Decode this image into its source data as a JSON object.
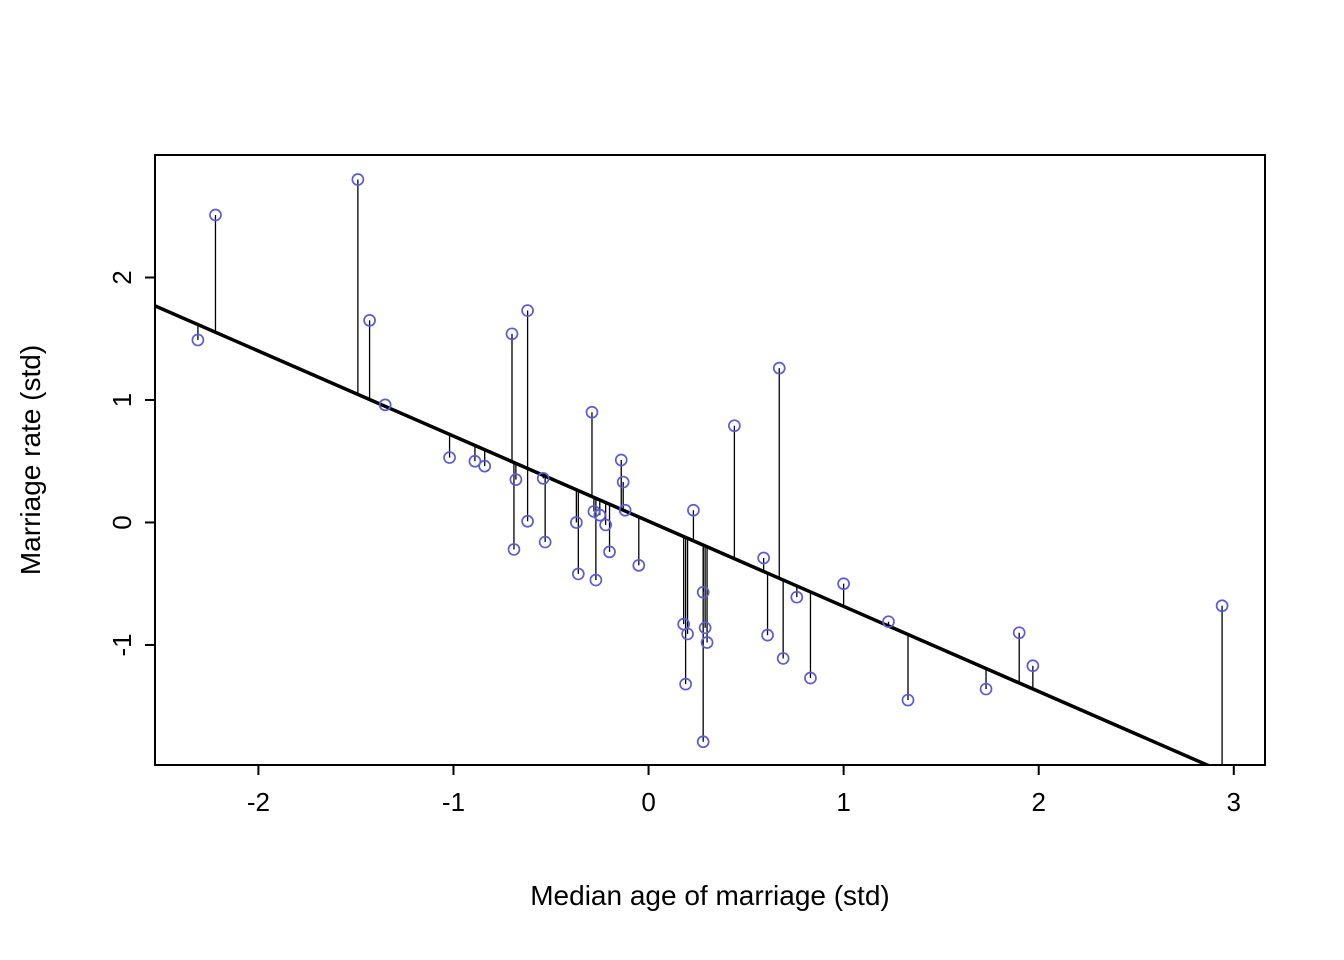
{
  "chart_data": {
    "type": "scatter",
    "title": "",
    "xlabel": "Median age of marriage (std)",
    "ylabel": "Marriage rate (std)",
    "xlim": [
      -2.53,
      3.16
    ],
    "ylim": [
      -1.98,
      3.0
    ],
    "x_ticks": [
      -2,
      -1,
      0,
      1,
      2,
      3
    ],
    "y_ticks": [
      -1,
      0,
      1,
      2
    ],
    "grid": false,
    "legend": false,
    "point_color": "#5b5bd8",
    "line_color": "#000000",
    "regression_line": {
      "intercept": 0.01,
      "slope": -0.695
    },
    "residual_segments": true,
    "points": [
      [
        -2.31,
        1.49
      ],
      [
        -2.22,
        2.51
      ],
      [
        -1.49,
        2.8
      ],
      [
        -1.43,
        1.65
      ],
      [
        -1.35,
        0.96
      ],
      [
        -1.02,
        0.53
      ],
      [
        -0.89,
        0.5
      ],
      [
        -0.84,
        0.46
      ],
      [
        -0.7,
        1.54
      ],
      [
        -0.68,
        0.35
      ],
      [
        -0.69,
        -0.22
      ],
      [
        -0.62,
        1.73
      ],
      [
        -0.62,
        0.01
      ],
      [
        -0.54,
        0.36
      ],
      [
        -0.53,
        -0.16
      ],
      [
        -0.37,
        0.0
      ],
      [
        -0.36,
        -0.42
      ],
      [
        -0.29,
        0.9
      ],
      [
        -0.28,
        0.09
      ],
      [
        -0.27,
        -0.47
      ],
      [
        -0.25,
        0.06
      ],
      [
        -0.22,
        -0.02
      ],
      [
        -0.2,
        -0.24
      ],
      [
        -0.14,
        0.51
      ],
      [
        -0.13,
        0.33
      ],
      [
        -0.12,
        0.1
      ],
      [
        -0.05,
        -0.35
      ],
      [
        0.18,
        -0.83
      ],
      [
        0.2,
        -0.91
      ],
      [
        0.19,
        -1.32
      ],
      [
        0.23,
        0.1
      ],
      [
        0.28,
        -0.57
      ],
      [
        0.29,
        -0.86
      ],
      [
        0.3,
        -0.98
      ],
      [
        0.28,
        -1.79
      ],
      [
        0.44,
        0.79
      ],
      [
        0.59,
        -0.29
      ],
      [
        0.61,
        -0.92
      ],
      [
        0.67,
        1.26
      ],
      [
        0.69,
        -1.11
      ],
      [
        0.76,
        -0.61
      ],
      [
        0.83,
        -1.27
      ],
      [
        1.0,
        -0.5
      ],
      [
        1.23,
        -0.81
      ],
      [
        1.33,
        -1.45
      ],
      [
        1.73,
        -1.36
      ],
      [
        1.9,
        -0.9
      ],
      [
        1.97,
        -1.17
      ],
      [
        2.94,
        -0.68
      ]
    ]
  }
}
